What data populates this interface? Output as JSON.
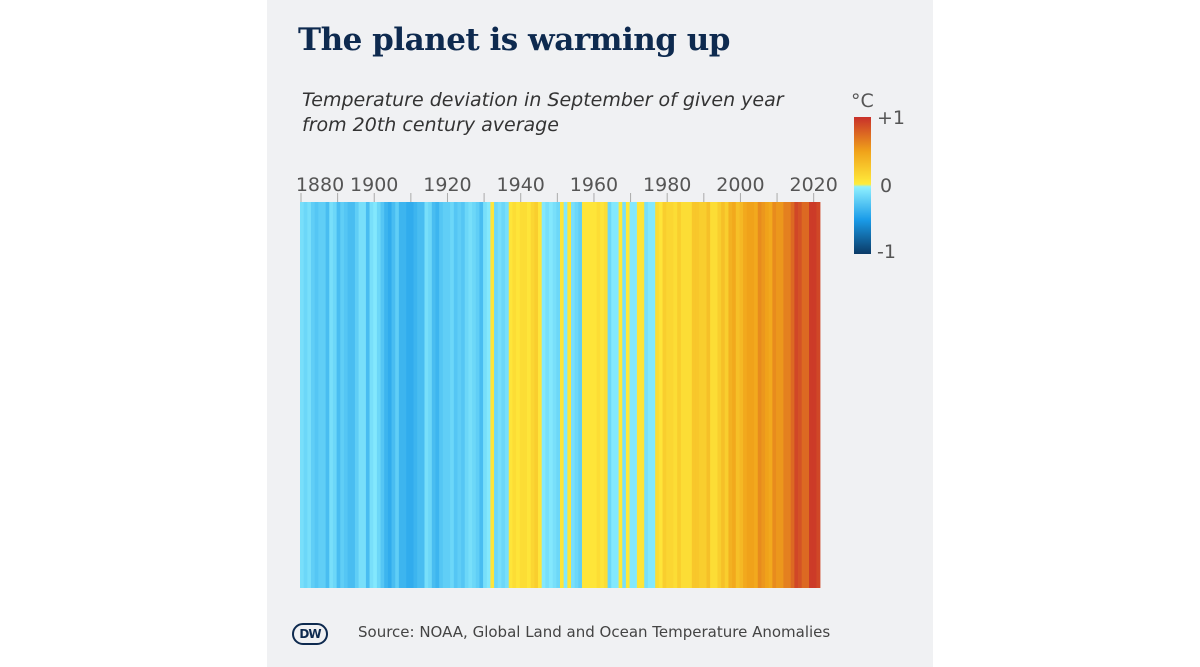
{
  "title": "The planet is warming up",
  "subtitle_line1": "Temperature deviation in September of given year",
  "subtitle_line2": "from 20th century average",
  "source": "Source: NOAA, Global Land and Ocean Temperature Anomalies",
  "logo": "DW",
  "chart_data": {
    "type": "heatmap",
    "title": "The planet is warming up",
    "subtitle": "Temperature deviation in September of given year from 20th century average",
    "x_start": 1880,
    "x_end": 2021,
    "x_ticks": [
      1880,
      1890,
      1900,
      1910,
      1920,
      1930,
      1940,
      1950,
      1960,
      1970,
      1980,
      1990,
      2000,
      2010,
      2020
    ],
    "x_tick_labels": [
      "1880",
      "1900",
      "1920",
      "1940",
      "1960",
      "1980",
      "2000",
      "2020"
    ],
    "legend": {
      "unit": "°C",
      "max_label": "+1",
      "mid_label": "0",
      "min_label": "-1",
      "range": [
        -1,
        1
      ],
      "placement": "top-right"
    },
    "colors": {
      "min": "#0b3a66",
      "cool": "#1a9be8",
      "near_zero_cool": "#8ff0ff",
      "near_zero_warm": "#ffec3c",
      "warm": "#f0a21a",
      "max": "#c8302a"
    },
    "values": [
      -0.1,
      -0.15,
      -0.1,
      -0.2,
      -0.25,
      -0.2,
      -0.2,
      -0.3,
      -0.1,
      -0.15,
      -0.3,
      -0.2,
      -0.25,
      -0.3,
      -0.3,
      -0.2,
      -0.1,
      -0.1,
      -0.3,
      -0.1,
      -0.05,
      -0.15,
      -0.25,
      -0.35,
      -0.4,
      -0.3,
      -0.2,
      -0.35,
      -0.35,
      -0.4,
      -0.4,
      -0.35,
      -0.3,
      -0.3,
      -0.1,
      -0.15,
      -0.3,
      -0.35,
      -0.25,
      -0.2,
      -0.2,
      -0.15,
      -0.25,
      -0.2,
      -0.25,
      -0.15,
      -0.1,
      -0.15,
      -0.2,
      -0.3,
      -0.1,
      -0.05,
      0.05,
      -0.15,
      -0.1,
      -0.15,
      -0.1,
      0.05,
      0.1,
      0.05,
      0.1,
      0.1,
      0.05,
      0.15,
      0.2,
      0.05,
      -0.05,
      -0.1,
      -0.05,
      -0.1,
      -0.15,
      0.05,
      -0.05,
      0.05,
      -0.1,
      -0.15,
      -0.2,
      0.05,
      0.05,
      0.05,
      0.05,
      0.1,
      0.05,
      0.1,
      -0.15,
      -0.05,
      -0.05,
      0.02,
      -0.1,
      0.03,
      -0.05,
      -0.05,
      0.05,
      0.05,
      -0.1,
      -0.05,
      -0.05,
      0.1,
      0.05,
      0.2,
      0.15,
      0.15,
      0.1,
      0.2,
      0.1,
      0.1,
      0.1,
      0.25,
      0.25,
      0.2,
      0.2,
      0.3,
      0.1,
      0.1,
      0.2,
      0.3,
      0.2,
      0.4,
      0.45,
      0.3,
      0.35,
      0.45,
      0.5,
      0.5,
      0.45,
      0.6,
      0.55,
      0.5,
      0.45,
      0.6,
      0.55,
      0.55,
      0.65,
      0.65,
      0.75,
      0.9,
      0.85,
      0.75,
      0.75,
      0.95,
      0.95,
      0.9
    ]
  }
}
